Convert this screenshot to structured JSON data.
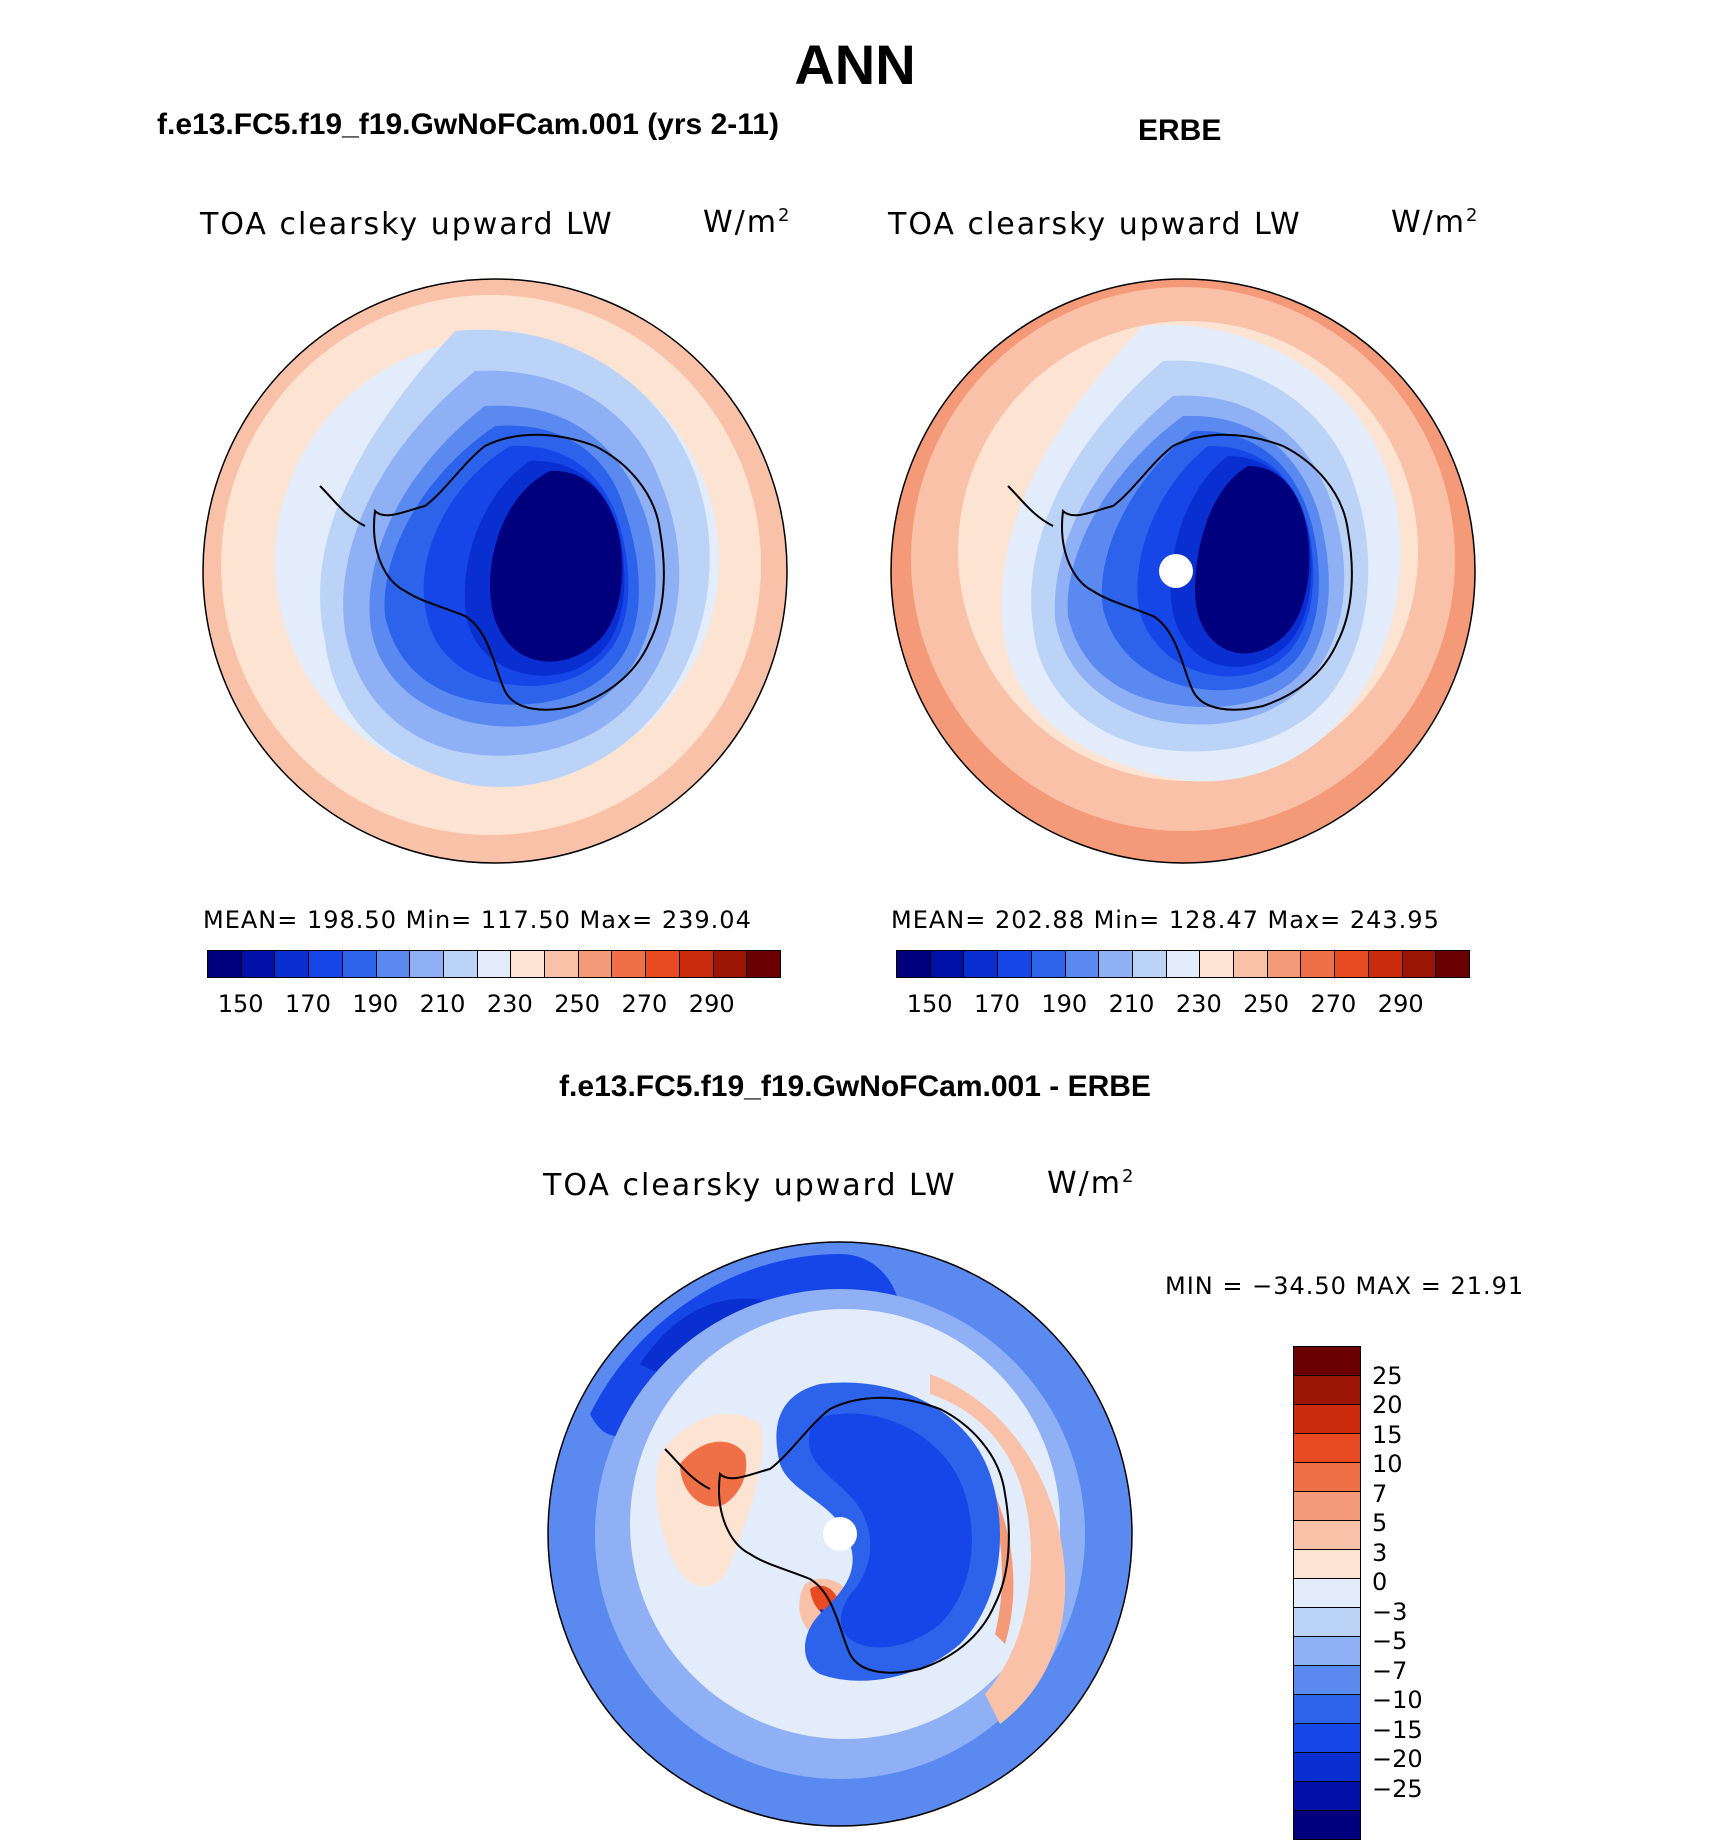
{
  "page": {
    "title": "ANN",
    "model_case": "f.e13.FC5.f19_f19.GwNoFCam.001 (yrs 2-11)",
    "obs_case": "ERBE",
    "diff_case": "f.e13.FC5.f19_f19.GwNoFCam.001 - ERBE"
  },
  "panels": {
    "model": {
      "variable": "TOA clearsky upward LW",
      "units": "W/m",
      "units_sup": "2",
      "stats": "MEAN= 198.50   Min= 117.50   Max= 239.04"
    },
    "obs": {
      "variable": "TOA clearsky upward LW",
      "units": "W/m",
      "units_sup": "2",
      "stats": "MEAN= 202.88   Min= 128.47   Max= 243.95"
    },
    "diff": {
      "variable": "TOA clearsky upward LW",
      "units": "W/m",
      "units_sup": "2",
      "stats": "MIN = −34.50 MAX =   21.91"
    }
  },
  "chart_data": [
    {
      "type": "heatmap",
      "title": "TOA clearsky upward LW (model)",
      "projection": "south polar stereographic",
      "units": "W/m2",
      "mean": 198.5,
      "min": 117.5,
      "max": 239.04,
      "levels": [
        150,
        160,
        170,
        180,
        190,
        200,
        210,
        220,
        230,
        240,
        250,
        260,
        270,
        280,
        290
      ],
      "colorbar_ticks": [
        "150",
        "170",
        "190",
        "210",
        "230",
        "250",
        "270",
        "290"
      ],
      "colors": [
        "#00007f",
        "#0010a8",
        "#0a2fd0",
        "#1646e8",
        "#2d63ea",
        "#5a8af0",
        "#8fb0f5",
        "#bcd3f8",
        "#e2ecfb",
        "#fde3d2",
        "#f9c2a8",
        "#f49a78",
        "#ef7047",
        "#e84a22",
        "#cc2a0c",
        "#9b1404",
        "#6b0000"
      ]
    },
    {
      "type": "heatmap",
      "title": "TOA clearsky upward LW (ERBE)",
      "projection": "south polar stereographic",
      "units": "W/m2",
      "mean": 202.88,
      "min": 128.47,
      "max": 243.95,
      "levels": [
        150,
        160,
        170,
        180,
        190,
        200,
        210,
        220,
        230,
        240,
        250,
        260,
        270,
        280,
        290
      ],
      "colorbar_ticks": [
        "150",
        "170",
        "190",
        "210",
        "230",
        "250",
        "270",
        "290"
      ],
      "colors": [
        "#00007f",
        "#0010a8",
        "#0a2fd0",
        "#1646e8",
        "#2d63ea",
        "#5a8af0",
        "#8fb0f5",
        "#bcd3f8",
        "#e2ecfb",
        "#fde3d2",
        "#f9c2a8",
        "#f49a78",
        "#ef7047",
        "#e84a22",
        "#cc2a0c",
        "#9b1404",
        "#6b0000"
      ]
    },
    {
      "type": "heatmap",
      "title": "TOA clearsky upward LW (difference)",
      "projection": "south polar stereographic",
      "units": "W/m2",
      "min": -34.5,
      "max": 21.91,
      "levels": [
        -25,
        -20,
        -15,
        -10,
        -7,
        -5,
        -3,
        0,
        3,
        5,
        7,
        10,
        15,
        20,
        25
      ],
      "colorbar_ticks": [
        "25",
        "20",
        "15",
        "10",
        "7",
        "5",
        "3",
        "0",
        "−3",
        "−5",
        "−7",
        "−10",
        "−15",
        "−20",
        "−25"
      ],
      "colors": [
        "#6b0000",
        "#9b1404",
        "#cc2a0c",
        "#e84a22",
        "#ef7047",
        "#f49a78",
        "#f9c2a8",
        "#fde3d2",
        "#e2ecfb",
        "#bcd3f8",
        "#8fb0f5",
        "#5a8af0",
        "#2d63ea",
        "#1646e8",
        "#0a2fd0",
        "#0010a8",
        "#00007f"
      ]
    }
  ]
}
